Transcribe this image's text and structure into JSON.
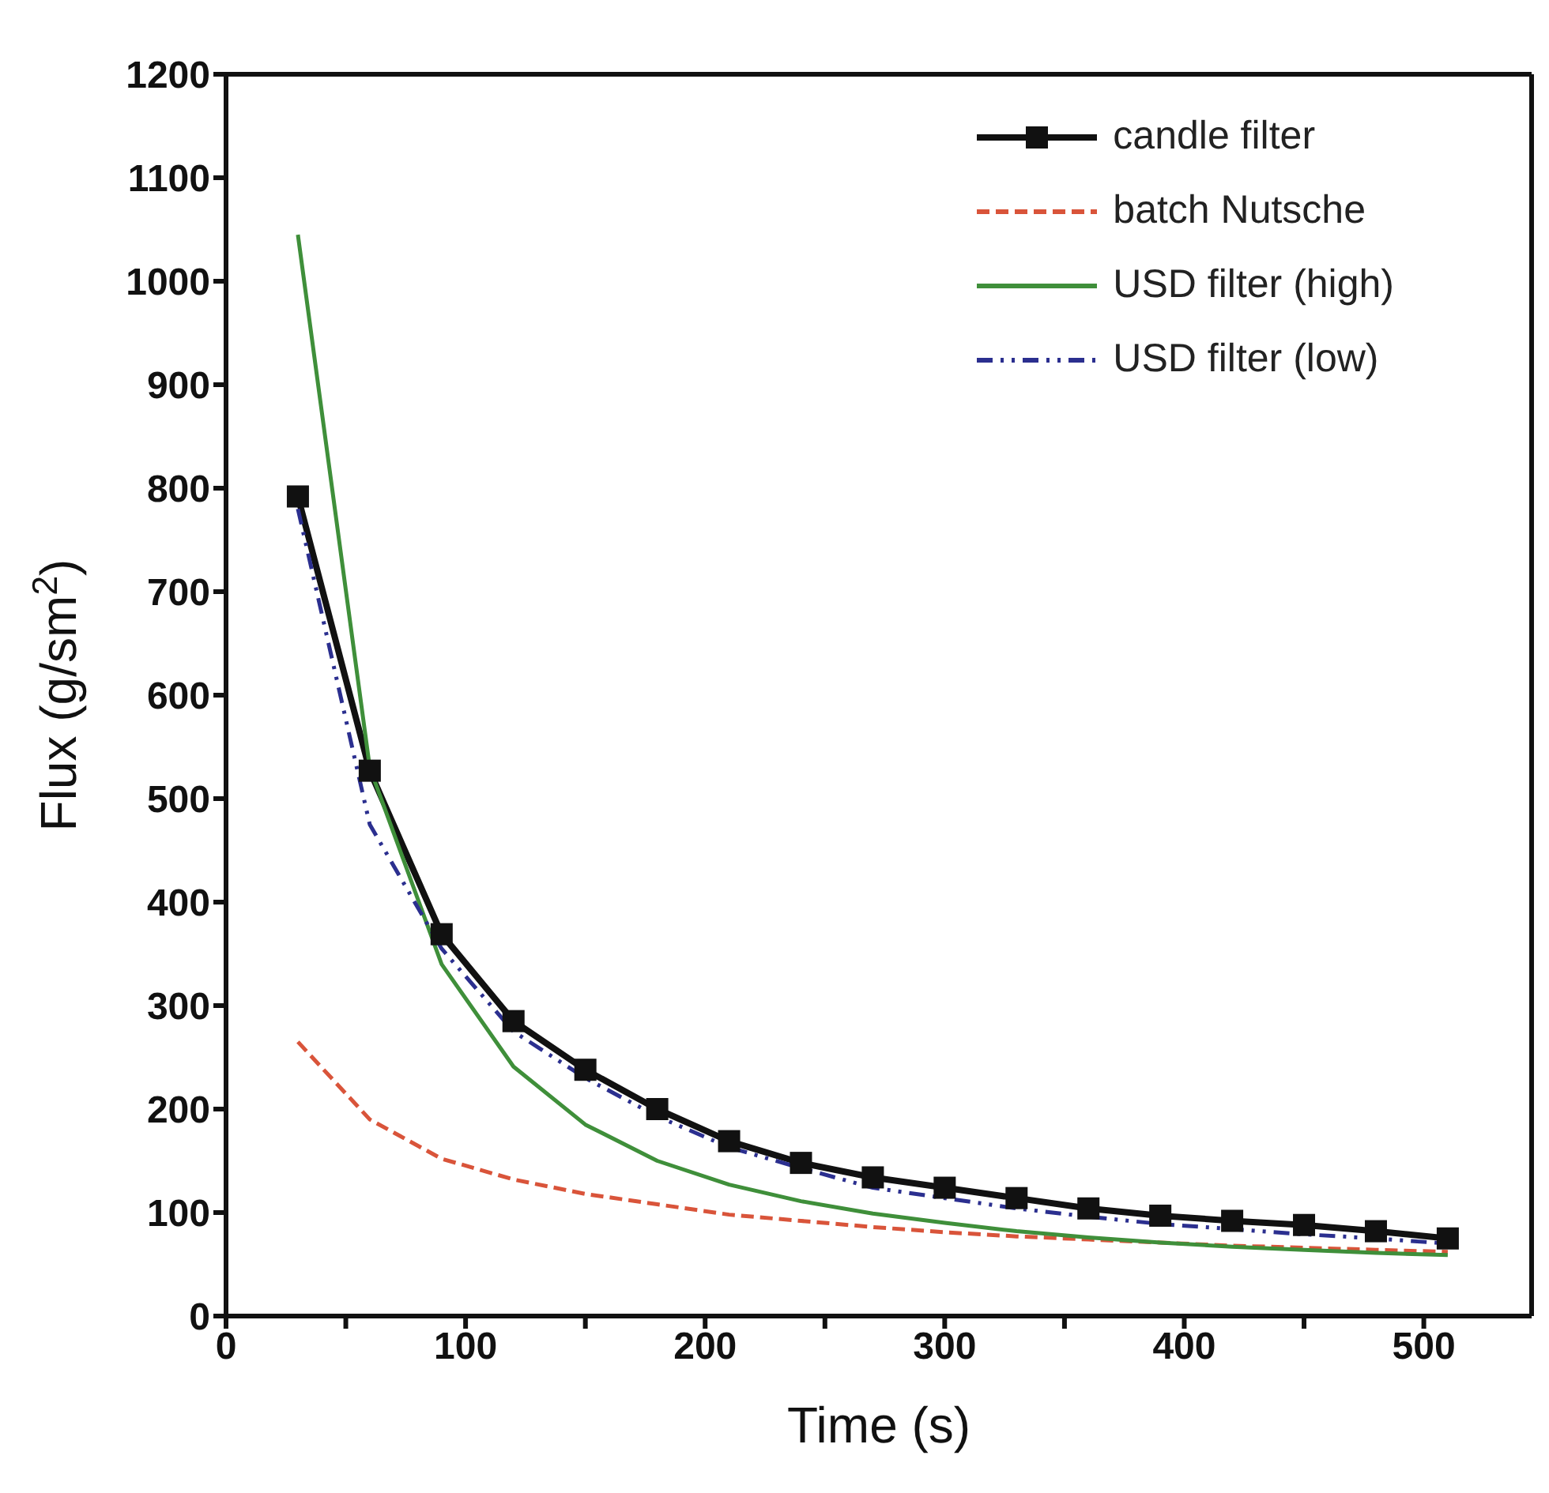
{
  "chart_data": {
    "type": "line",
    "xlabel": "Time (s)",
    "ylabel": "Flux (g/sm$^{2}$)",
    "x": [
      30,
      60,
      90,
      120,
      150,
      180,
      210,
      240,
      270,
      300,
      330,
      360,
      390,
      420,
      450,
      480,
      510
    ],
    "xlim": [
      0,
      545
    ],
    "xticks": [
      0,
      {
        "value": 50,
        "label": null
      },
      100,
      {
        "value": 150,
        "label": null
      },
      200,
      {
        "value": 250,
        "label": null
      },
      300,
      {
        "value": 350,
        "label": null
      },
      400,
      {
        "value": 450,
        "label": null
      },
      500
    ],
    "ylim": [
      0,
      1200
    ],
    "yticks": [
      0,
      100,
      200,
      300,
      400,
      500,
      600,
      700,
      800,
      900,
      1000,
      1100,
      1200
    ],
    "legend": "top right",
    "series": [
      {
        "name": "candle filter",
        "color": "#111111",
        "marker": "square",
        "line_style": "solid",
        "values": [
          792,
          527,
          369,
          285,
          238,
          200,
          169,
          148,
          134,
          124,
          114,
          104,
          97,
          92,
          88,
          82,
          75
        ]
      },
      {
        "name": "batch Nutsche",
        "color": "#d9543a",
        "marker": "none",
        "line_style": "dashed",
        "values": [
          265,
          190,
          152,
          132,
          118,
          108,
          98,
          92,
          86,
          81,
          77,
          74,
          71,
          68,
          66,
          64,
          62
        ]
      },
      {
        "name": "USD filter (high)",
        "color": "#3f8f3a",
        "marker": "none",
        "line_style": "solid",
        "values": [
          1045,
          530,
          340,
          241,
          185,
          150,
          127,
          111,
          99,
          90,
          82,
          76,
          71,
          67,
          64,
          61,
          59
        ]
      },
      {
        "name": "USD filter (low)",
        "color": "#2b2f8f",
        "marker": "none",
        "line_style": "dashdot",
        "values": [
          780,
          475,
          355,
          275,
          230,
          193,
          163,
          143,
          124,
          114,
          104,
          96,
          89,
          84,
          79,
          75,
          70
        ]
      }
    ]
  }
}
